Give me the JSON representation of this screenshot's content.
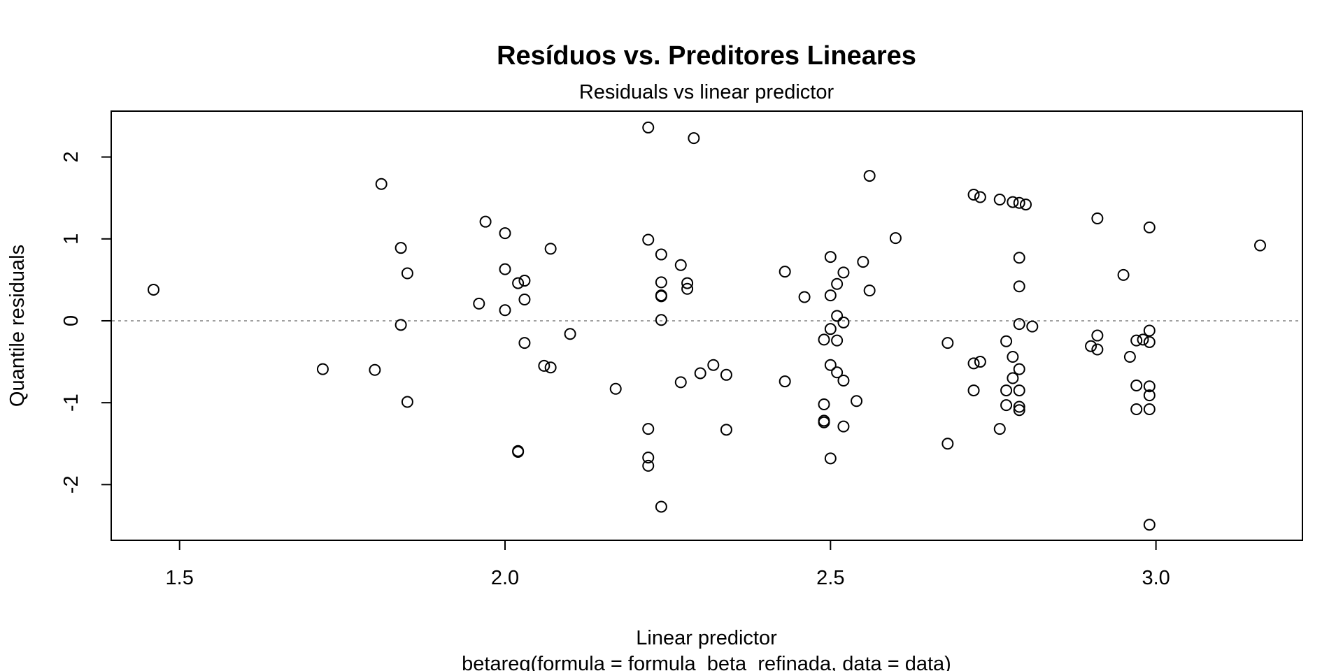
{
  "chart_data": {
    "type": "scatter",
    "title": "Resíduos vs. Preditores Lineares",
    "subtitle": "Residuals vs linear predictor",
    "xlabel": "Linear predictor",
    "sublabel": "betareg(formula = formula_beta_refinada, data = data)",
    "ylabel": "Quantile residuals",
    "xlim": [
      1.395,
      3.225
    ],
    "ylim": [
      -2.68,
      2.56
    ],
    "xticks": [
      1.5,
      2.0,
      2.5,
      3.0
    ],
    "xtick_labels": [
      "1.5",
      "2.0",
      "2.5",
      "3.0"
    ],
    "yticks": [
      -2,
      -1,
      0,
      1,
      2
    ],
    "ytick_labels": [
      "-2",
      "-1",
      "0",
      "1",
      "2"
    ],
    "reference_line": {
      "y": 0,
      "style": "dotted",
      "color": "#a0a0a0"
    },
    "grid": false,
    "legend": "none",
    "point_style": "open-circle",
    "point_color": "#000000",
    "points": [
      [
        1.46,
        0.38
      ],
      [
        1.72,
        -0.59
      ],
      [
        1.8,
        -0.6
      ],
      [
        1.81,
        1.67
      ],
      [
        1.84,
        0.89
      ],
      [
        1.84,
        -0.05
      ],
      [
        1.85,
        0.58
      ],
      [
        1.85,
        -0.99
      ],
      [
        1.96,
        0.21
      ],
      [
        1.97,
        1.21
      ],
      [
        2.0,
        1.07
      ],
      [
        2.0,
        0.63
      ],
      [
        2.0,
        0.13
      ],
      [
        2.02,
        0.46
      ],
      [
        2.03,
        0.49
      ],
      [
        2.03,
        0.26
      ],
      [
        2.03,
        -0.27
      ],
      [
        2.02,
        -1.59
      ],
      [
        2.02,
        -1.6
      ],
      [
        2.06,
        -0.55
      ],
      [
        2.07,
        -0.57
      ],
      [
        2.07,
        0.88
      ],
      [
        2.1,
        -0.16
      ],
      [
        2.17,
        -0.83
      ],
      [
        2.22,
        2.36
      ],
      [
        2.22,
        0.99
      ],
      [
        2.24,
        0.81
      ],
      [
        2.24,
        0.47
      ],
      [
        2.24,
        0.3
      ],
      [
        2.24,
        0.31
      ],
      [
        2.24,
        0.01
      ],
      [
        2.22,
        -1.32
      ],
      [
        2.22,
        -1.67
      ],
      [
        2.22,
        -1.77
      ],
      [
        2.24,
        -2.27
      ],
      [
        2.27,
        0.68
      ],
      [
        2.28,
        0.46
      ],
      [
        2.28,
        0.39
      ],
      [
        2.27,
        -0.75
      ],
      [
        2.29,
        2.23
      ],
      [
        2.3,
        -0.64
      ],
      [
        2.32,
        -0.54
      ],
      [
        2.34,
        -0.66
      ],
      [
        2.34,
        -1.33
      ],
      [
        2.43,
        0.6
      ],
      [
        2.43,
        -0.74
      ],
      [
        2.46,
        0.29
      ],
      [
        2.5,
        0.78
      ],
      [
        2.5,
        0.31
      ],
      [
        2.51,
        0.45
      ],
      [
        2.52,
        0.59
      ],
      [
        2.51,
        0.06
      ],
      [
        2.5,
        -0.1
      ],
      [
        2.52,
        -0.02
      ],
      [
        2.49,
        -0.23
      ],
      [
        2.51,
        -0.24
      ],
      [
        2.5,
        -0.54
      ],
      [
        2.51,
        -0.63
      ],
      [
        2.52,
        -0.73
      ],
      [
        2.49,
        -1.02
      ],
      [
        2.49,
        -1.22
      ],
      [
        2.49,
        -1.24
      ],
      [
        2.52,
        -1.29
      ],
      [
        2.5,
        -1.68
      ],
      [
        2.54,
        -0.98
      ],
      [
        2.55,
        0.72
      ],
      [
        2.56,
        1.77
      ],
      [
        2.56,
        0.37
      ],
      [
        2.6,
        1.01
      ],
      [
        2.68,
        -0.27
      ],
      [
        2.68,
        -1.5
      ],
      [
        2.72,
        1.54
      ],
      [
        2.73,
        1.51
      ],
      [
        2.72,
        -0.52
      ],
      [
        2.73,
        -0.5
      ],
      [
        2.72,
        -0.85
      ],
      [
        2.76,
        1.48
      ],
      [
        2.78,
        1.45
      ],
      [
        2.79,
        1.44
      ],
      [
        2.8,
        1.42
      ],
      [
        2.79,
        0.77
      ],
      [
        2.79,
        0.42
      ],
      [
        2.79,
        -0.04
      ],
      [
        2.77,
        -0.25
      ],
      [
        2.78,
        -0.44
      ],
      [
        2.79,
        -0.59
      ],
      [
        2.78,
        -0.7
      ],
      [
        2.77,
        -0.85
      ],
      [
        2.79,
        -0.85
      ],
      [
        2.77,
        -1.03
      ],
      [
        2.79,
        -1.05
      ],
      [
        2.79,
        -1.09
      ],
      [
        2.76,
        -1.32
      ],
      [
        2.81,
        -0.07
      ],
      [
        2.9,
        -0.31
      ],
      [
        2.91,
        -0.35
      ],
      [
        2.91,
        -0.18
      ],
      [
        2.91,
        1.25
      ],
      [
        2.95,
        0.56
      ],
      [
        2.97,
        -0.24
      ],
      [
        2.98,
        -0.23
      ],
      [
        2.96,
        -0.44
      ],
      [
        2.97,
        -0.79
      ],
      [
        2.97,
        -1.08
      ],
      [
        2.99,
        1.14
      ],
      [
        2.99,
        -0.12
      ],
      [
        2.99,
        -0.26
      ],
      [
        2.99,
        -0.8
      ],
      [
        2.99,
        -0.91
      ],
      [
        2.99,
        -1.08
      ],
      [
        2.99,
        -2.49
      ],
      [
        3.16,
        0.92
      ]
    ]
  }
}
